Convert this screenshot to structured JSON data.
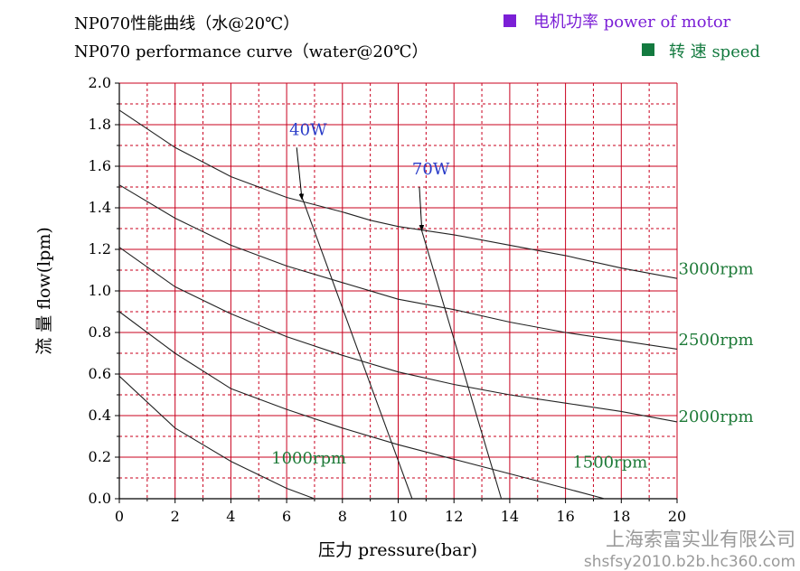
{
  "title": {
    "line1": "NP070性能曲线（水@20℃）",
    "line2": "NP070 performance curve（water@20℃）"
  },
  "legend": {
    "items": [
      {
        "label": "电机功率 power of motor",
        "color": "#7b1fd6"
      },
      {
        "label": "转 速 speed",
        "color": "#137a3f"
      }
    ]
  },
  "watermark": {
    "line1": "上海索富实业有限公司",
    "line2": "shsfsy2010.b2b.hc360.com"
  },
  "colors": {
    "grid": "#c8001e",
    "curve": "#222222",
    "speed_label": "#1e7a38",
    "power_label": "#2a3cc8"
  },
  "chart_data": {
    "type": "line",
    "xlabel": "压力 pressure(bar)",
    "ylabel": "流 量 flow(lpm)",
    "xlim": [
      0,
      20
    ],
    "ylim": [
      0,
      2.0
    ],
    "xticks": [
      "0",
      "2",
      "4",
      "6",
      "8",
      "10",
      "12",
      "14",
      "16",
      "18",
      "20"
    ],
    "yticks": [
      "0.0",
      "0.2",
      "0.4",
      "0.6",
      "0.8",
      "1.0",
      "1.2",
      "1.4",
      "1.6",
      "1.8",
      "2.0"
    ],
    "grid": true,
    "series": [
      {
        "name": "3000rpm",
        "group": "speed",
        "x": [
          0,
          2,
          4,
          6,
          8,
          9,
          10,
          12,
          14,
          16,
          18,
          20
        ],
        "y": [
          1.87,
          1.69,
          1.55,
          1.45,
          1.38,
          1.34,
          1.31,
          1.27,
          1.22,
          1.17,
          1.11,
          1.06
        ]
      },
      {
        "name": "2500rpm",
        "group": "speed",
        "x": [
          0,
          2,
          4,
          6,
          8,
          10,
          12,
          14,
          16,
          18,
          20
        ],
        "y": [
          1.51,
          1.35,
          1.22,
          1.12,
          1.04,
          0.96,
          0.91,
          0.85,
          0.8,
          0.76,
          0.72
        ]
      },
      {
        "name": "2000rpm",
        "group": "speed",
        "x": [
          0,
          2,
          4,
          6,
          8,
          10,
          12,
          14,
          16,
          18,
          20
        ],
        "y": [
          1.21,
          1.02,
          0.89,
          0.78,
          0.69,
          0.61,
          0.55,
          0.5,
          0.46,
          0.42,
          0.37
        ]
      },
      {
        "name": "1500rpm",
        "group": "speed",
        "x": [
          0,
          2,
          4,
          6,
          8,
          10,
          12,
          14,
          16,
          17.4
        ],
        "y": [
          0.9,
          0.7,
          0.53,
          0.43,
          0.34,
          0.26,
          0.19,
          0.12,
          0.05,
          0.0
        ]
      },
      {
        "name": "1000rpm",
        "group": "speed",
        "x": [
          0,
          2,
          4,
          6,
          7.0
        ],
        "y": [
          0.59,
          0.34,
          0.18,
          0.05,
          0.0
        ]
      },
      {
        "name": "40W",
        "group": "power",
        "x": [
          6.5,
          10.5
        ],
        "y": [
          1.47,
          0.0
        ]
      },
      {
        "name": "70W",
        "group": "power",
        "x": [
          10.8,
          13.7
        ],
        "y": [
          1.31,
          0.0
        ]
      }
    ],
    "annotations": [
      {
        "text": "40W",
        "x": 6.1,
        "y": 1.75,
        "arrow_to": [
          6.55,
          1.44
        ],
        "arrow_from": [
          6.1,
          1.69
        ]
      },
      {
        "text": "70W",
        "x": 10.5,
        "y": 1.56,
        "arrow_to": [
          10.85,
          1.29
        ],
        "arrow_from": [
          10.5,
          1.5
        ]
      },
      {
        "text": "3000rpm",
        "x": 20.05,
        "y": 1.08
      },
      {
        "text": "2500rpm",
        "x": 20.05,
        "y": 0.74
      },
      {
        "text": "2000rpm",
        "x": 20.05,
        "y": 0.37
      },
      {
        "text": "1500rpm",
        "x": 16.25,
        "y": 0.15
      },
      {
        "text": "1000rpm",
        "x": 5.45,
        "y": 0.17
      }
    ]
  }
}
